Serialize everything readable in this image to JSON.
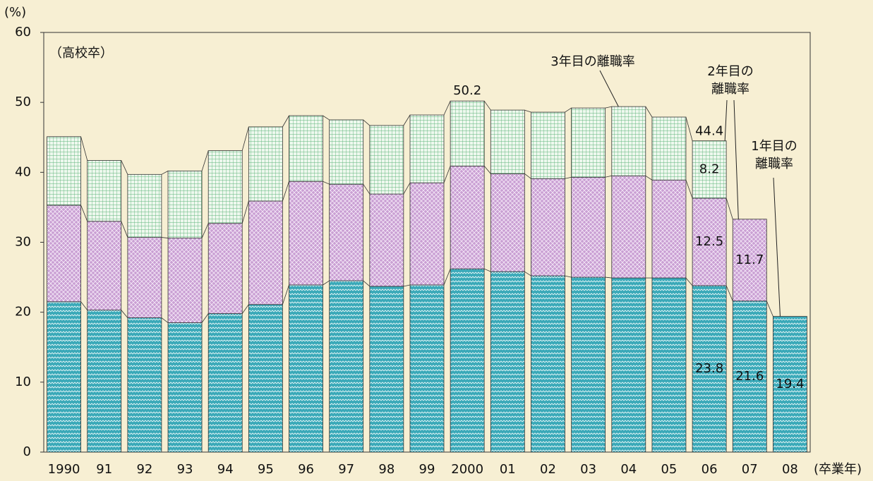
{
  "chart_data": {
    "type": "stacked_bar",
    "y_unit": "(%)",
    "x_unit": "(卒業年)",
    "subtitle": "（高校卒）",
    "categories": [
      "1990",
      "91",
      "92",
      "93",
      "94",
      "95",
      "96",
      "97",
      "98",
      "99",
      "2000",
      "01",
      "02",
      "03",
      "04",
      "05",
      "06",
      "07",
      "08"
    ],
    "series": [
      {
        "name": "1年目の\n離職率",
        "color": "#3aa9b8",
        "pattern": "zigzag",
        "values": [
          21.5,
          20.3,
          19.2,
          18.5,
          19.8,
          21.1,
          23.9,
          24.5,
          23.7,
          23.9,
          26.2,
          25.8,
          25.2,
          25.0,
          24.9,
          24.9,
          23.8,
          21.6,
          19.4
        ]
      },
      {
        "name": "2年目の\n離職率",
        "color": "#c99fd3",
        "pattern": "cross",
        "values": [
          13.8,
          12.7,
          11.5,
          12.1,
          12.9,
          14.8,
          14.8,
          13.8,
          13.2,
          14.6,
          14.7,
          14.0,
          13.9,
          14.3,
          14.6,
          14.0,
          12.5,
          11.7,
          null
        ]
      },
      {
        "name": "3年目の離職率",
        "color": "#9fd4a8",
        "pattern": "grid",
        "values": [
          9.8,
          8.7,
          9.0,
          9.6,
          10.4,
          10.6,
          9.4,
          9.2,
          9.8,
          9.7,
          9.3,
          9.1,
          9.5,
          9.9,
          9.9,
          9.0,
          8.2,
          null,
          null
        ]
      }
    ],
    "totals": [
      null,
      null,
      null,
      null,
      null,
      null,
      null,
      null,
      null,
      null,
      50.2,
      null,
      null,
      null,
      null,
      null,
      44.4,
      null,
      null
    ],
    "data_labels": [
      "06",
      "07",
      "08"
    ],
    "ylim": [
      0,
      60
    ],
    "yticks": [
      0,
      10,
      20,
      30,
      40,
      50,
      60
    ]
  }
}
